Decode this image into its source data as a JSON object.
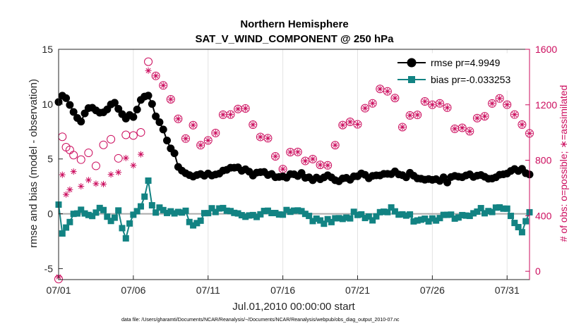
{
  "chart_data": {
    "type": "line",
    "title": "Northern Hemisphere",
    "subtitle": "SAT_V_WIND_COMPONENT @ 250 hPa",
    "xlabel": "Jul.01,2010 00:00:00 start",
    "ylabel": "rmse and bias (model - observation)",
    "y2label": "# of obs: o=possible; ∗=assimilated",
    "footnote": "data file: /Users/gharamti/Documents/NCAR/Reanalysis/~/Documents/NCAR/Reanalysis/webpub/obs_diag_output_2010-07.nc",
    "xlim": [
      0,
      31.5
    ],
    "ylim": [
      -6,
      15
    ],
    "y2lim": [
      -60,
      1600
    ],
    "x_ticks": [
      0,
      5,
      10,
      15,
      20,
      25,
      30
    ],
    "x_tick_labels": [
      "07/01",
      "07/06",
      "07/11",
      "07/16",
      "07/21",
      "07/26",
      "07/31"
    ],
    "y_ticks": [
      -5,
      0,
      5,
      10,
      15
    ],
    "y_tick_labels": [
      "-5",
      "0",
      "5",
      "10",
      "15"
    ],
    "y2_ticks": [
      0,
      400,
      800,
      1200,
      1600
    ],
    "y2_tick_labels": [
      "0",
      "400",
      "800",
      "1200",
      "1600"
    ],
    "grid": "vertical",
    "legend_position": "top-right",
    "colors": {
      "rmse": "#000000",
      "bias": "#128383",
      "obs": "#cc0d5e",
      "zero_line": "#aaaaaa"
    },
    "anchor_days": [
      0,
      0.25,
      0.5,
      1,
      1.5,
      2,
      2.5,
      3,
      3.5,
      4,
      4.5,
      5,
      5.5,
      6,
      6.25,
      6.5,
      7,
      7.5,
      8,
      8.5,
      9,
      9.5,
      10,
      11,
      12,
      13,
      14,
      15,
      16,
      17,
      18,
      19,
      20,
      21,
      22,
      23,
      24,
      25,
      26,
      27,
      28,
      29,
      30,
      31,
      31.5
    ],
    "series": [
      {
        "name": "rmse pr=4.9949",
        "axis": "left",
        "values": [
          10.2,
          10.8,
          10.5,
          9.2,
          8.6,
          9.8,
          9.5,
          9.2,
          10.2,
          9.6,
          8.8,
          8.8,
          10.5,
          10.8,
          10.2,
          9.0,
          7.5,
          6.2,
          4.5,
          3.8,
          3.6,
          3.5,
          3.6,
          4.0,
          4.0,
          3.7,
          3.6,
          3.4,
          3.6,
          3.3,
          3.4,
          3.0,
          3.5,
          3.4,
          3.7,
          3.6,
          3.4,
          3.1,
          3.1,
          3.4,
          3.6,
          3.3,
          3.8,
          4.0,
          3.8
        ]
      },
      {
        "name": "bias pr=-0.033253",
        "axis": "left",
        "values": [
          0.8,
          -1.8,
          -1.2,
          0.2,
          0.4,
          -0.4,
          0.2,
          0.4,
          -0.6,
          0.1,
          -2.4,
          0.2,
          0.4,
          2.8,
          0.6,
          0.4,
          0.5,
          0.2,
          0.3,
          0.1,
          -1.0,
          -0.6,
          0.2,
          0.5,
          -0.2,
          -0.4,
          0.3,
          0.2,
          0.4,
          -0.4,
          -0.7,
          -0.4,
          0.0,
          -0.5,
          0.4,
          0.1,
          -0.6,
          -0.4,
          -0.3,
          0.0,
          0.2,
          0.4,
          0.3,
          -1.5,
          0.2
        ]
      },
      {
        "name": "obs possible",
        "axis": "right",
        "marker": "circle",
        "values": [
          -10,
          1020,
          920,
          830,
          750,
          860,
          810,
          880,
          930,
          820,
          940,
          1000,
          1060,
          1500,
          1550,
          1450,
          1300,
          1200,
          1100,
          1000,
          1100,
          880,
          960,
          1080,
          1180,
          1050,
          900,
          750,
          870,
          780,
          820,
          1000,
          1100,
          1230,
          1340,
          1070,
          1150,
          1260,
          1120,
          980,
          1100,
          1220,
          1230,
          1030,
          1020
        ]
      },
      {
        "name": "obs assimilated",
        "axis": "right",
        "marker": "asterisk",
        "values": [
          -10,
          650,
          520,
          720,
          650,
          690,
          580,
          610,
          680,
          720,
          760,
          780,
          860,
          1450,
          1530,
          1450,
          1300,
          1200,
          1100,
          1000,
          1100,
          880,
          960,
          1080,
          1180,
          1050,
          900,
          750,
          870,
          780,
          820,
          1000,
          1100,
          1230,
          1340,
          1070,
          1150,
          1260,
          1120,
          980,
          1100,
          1220,
          1230,
          1030,
          1020
        ]
      }
    ]
  }
}
